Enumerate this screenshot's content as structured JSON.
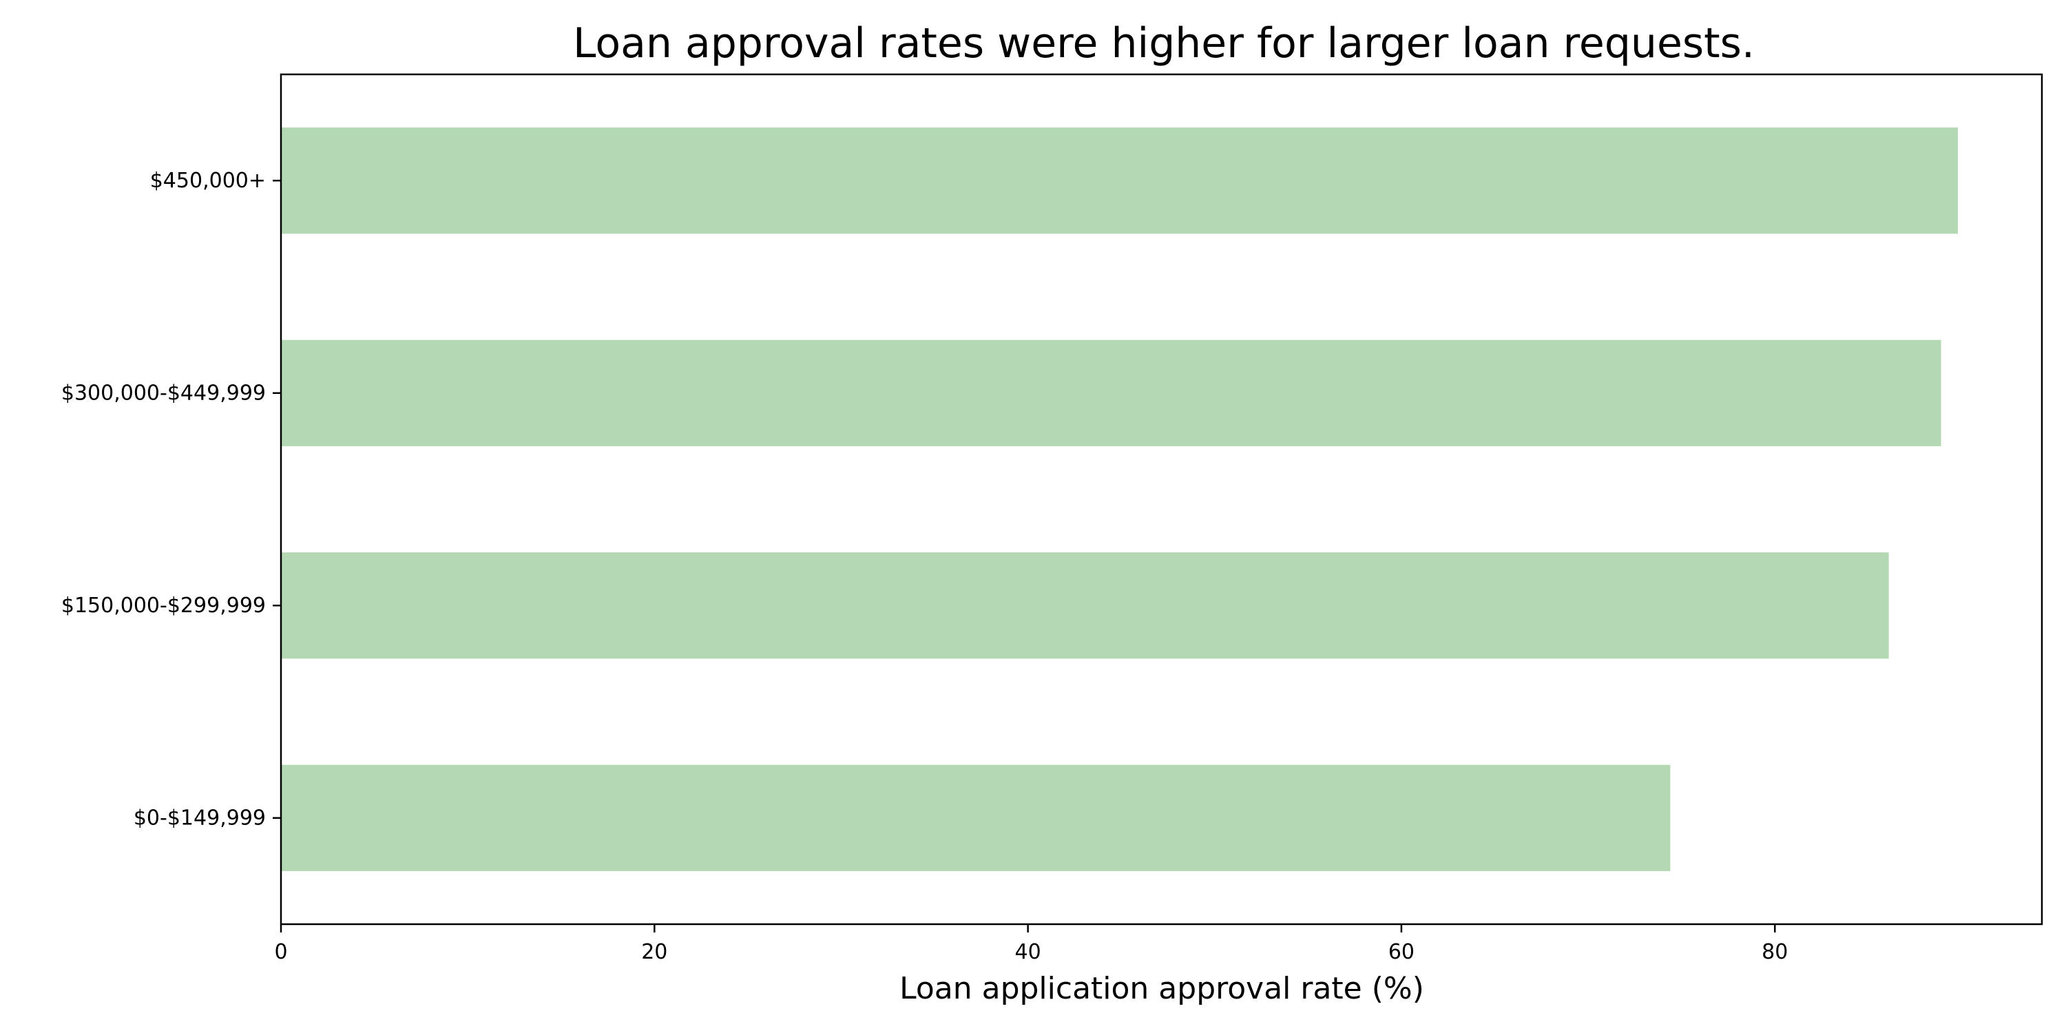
{
  "chart_data": {
    "type": "bar",
    "orientation": "horizontal",
    "title": "Loan approval rates were higher for larger loan requests.",
    "xlabel": "Loan application approval rate (%)",
    "ylabel": "",
    "categories": [
      "$0-$149,999",
      "$150,000-$299,999",
      "$300,000-$449,999",
      "$450,000+"
    ],
    "values": [
      74.4,
      86.1,
      88.9,
      89.8
    ],
    "xlim": [
      0,
      94.3
    ],
    "xticks": [
      0,
      20,
      40,
      60,
      80
    ],
    "xtick_labels": [
      "0",
      "20",
      "40",
      "60",
      "80"
    ],
    "bar_color": "#b3d8b3",
    "grid": false,
    "legend": "none"
  }
}
